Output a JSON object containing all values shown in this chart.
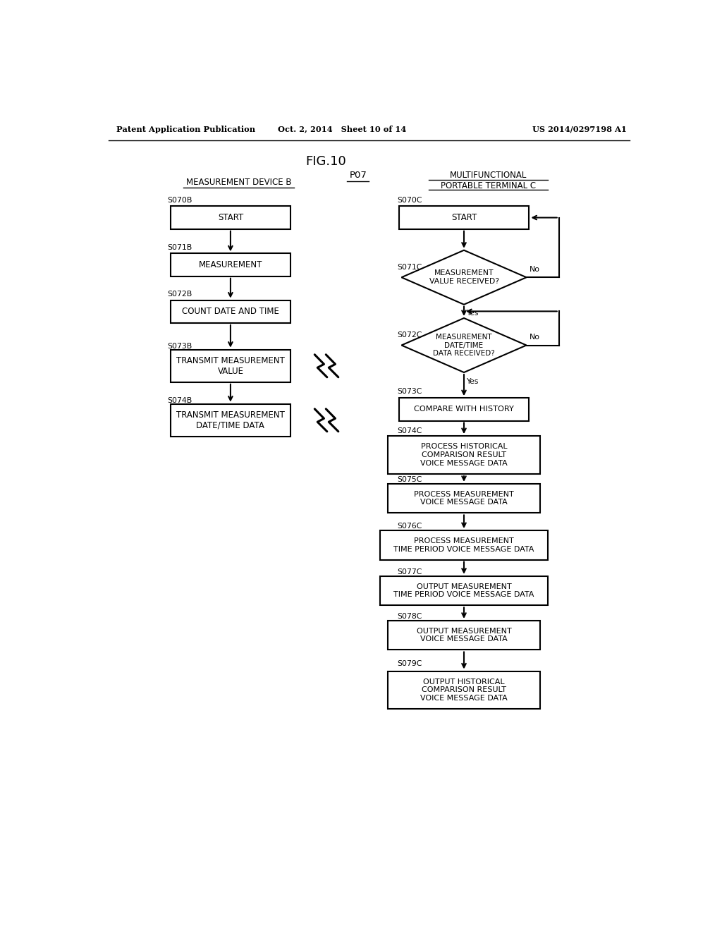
{
  "header_left": "Patent Application Publication",
  "header_middle": "Oct. 2, 2014   Sheet 10 of 14",
  "header_right": "US 2014/0297198 A1",
  "fig_title": "FIG.10",
  "col_b_label": "MEASUREMENT DEVICE B",
  "col_p_label": "P07",
  "col_c_label1": "MULTIFUNCTIONAL",
  "col_c_label2": "PORTABLE TERMINAL C",
  "bg_color": "#ffffff"
}
